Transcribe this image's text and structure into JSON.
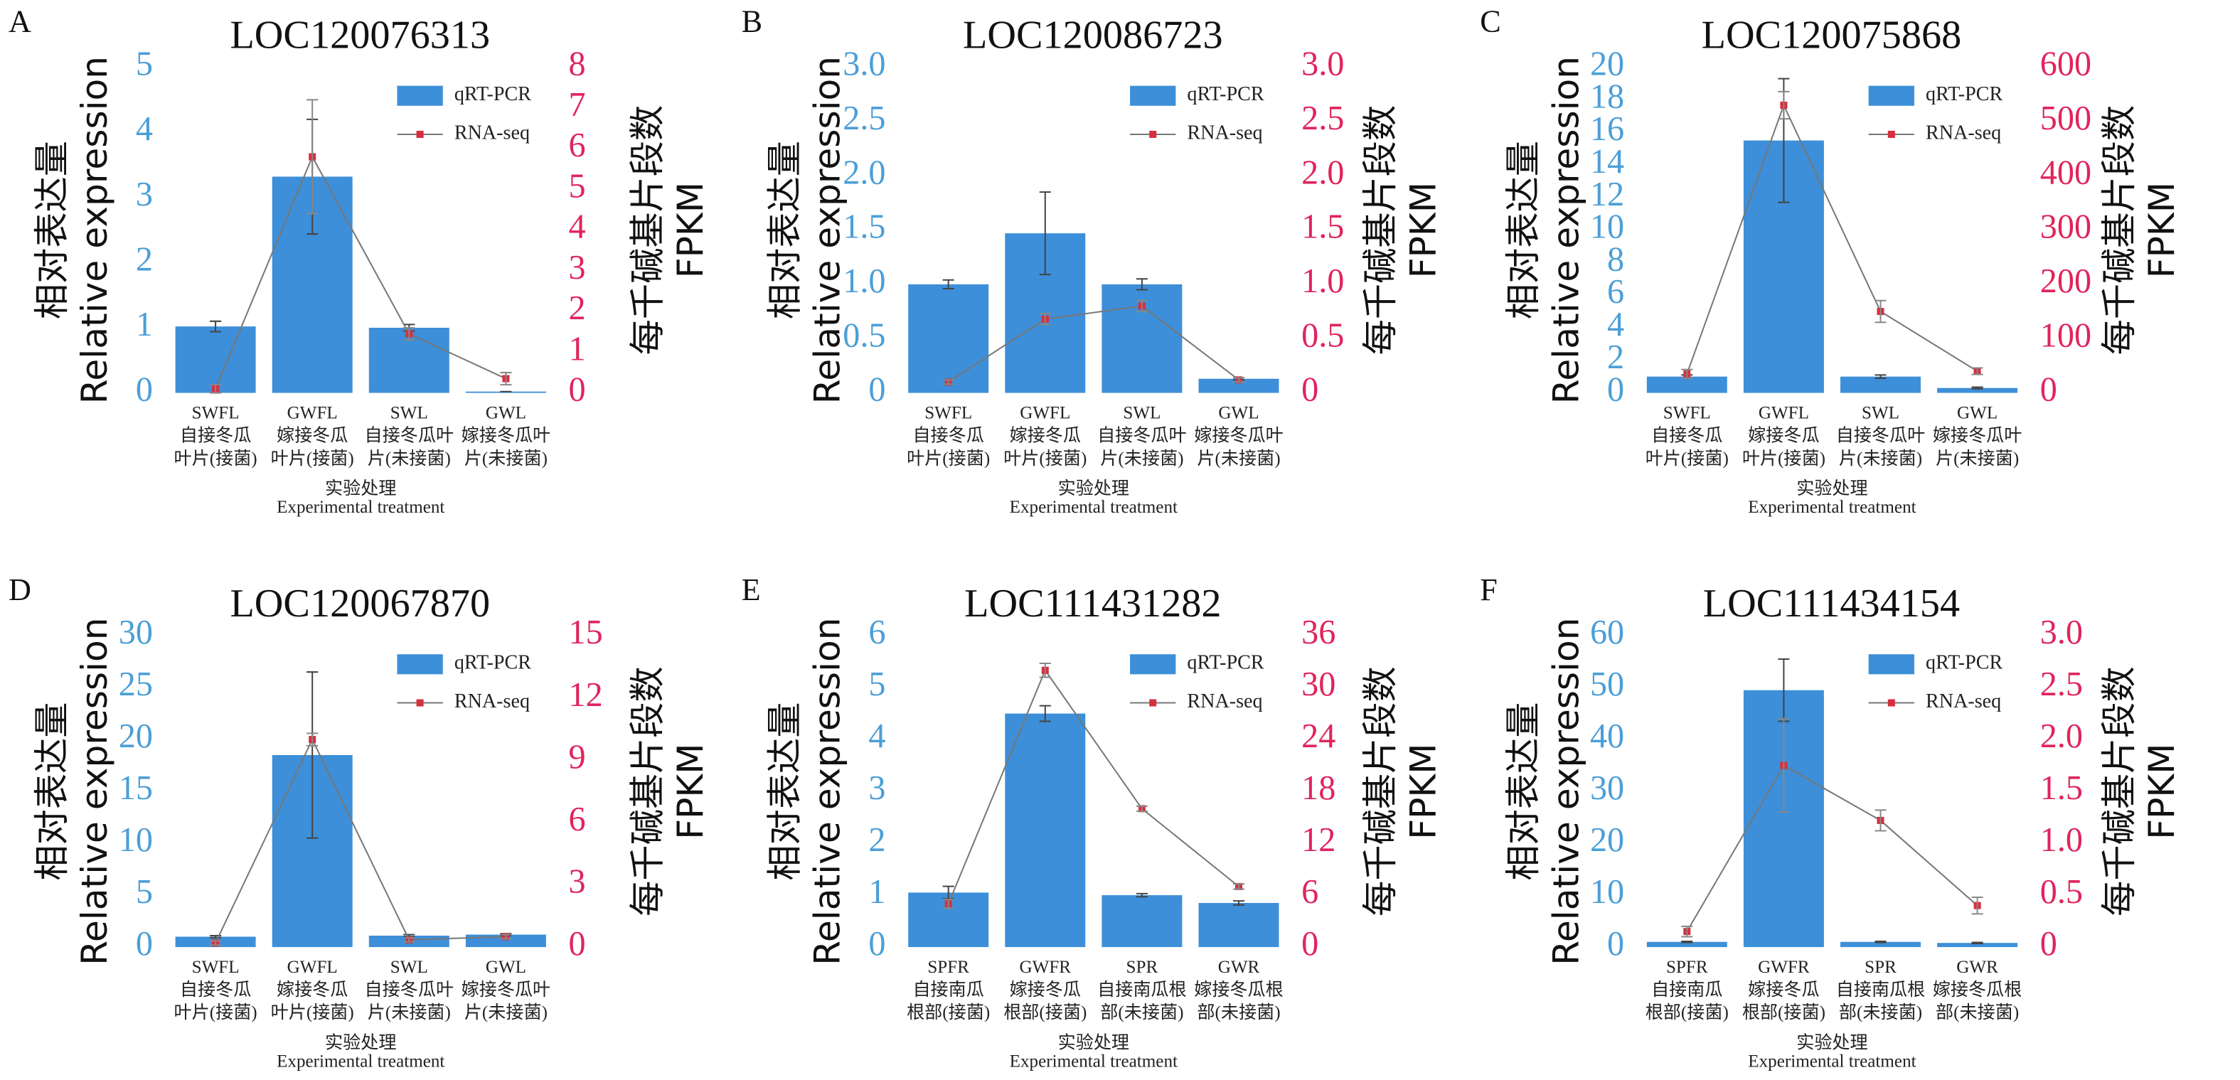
{
  "chart_data": [
    {
      "type": "bar",
      "panel": "A",
      "title": "LOC120076313",
      "y_label": [
        "相对表达量",
        "Relative expression"
      ],
      "y2_label": [
        "每千碱基片段数",
        "FPKM"
      ],
      "x_label": [
        "实验处理",
        "Experimental treatment"
      ],
      "categories": [
        [
          "SWFL",
          "自接冬瓜",
          "叶片(接菌)"
        ],
        [
          "GWFL",
          "嫁接冬瓜",
          "叶片(接菌)"
        ],
        [
          "SWL",
          "自接冬瓜叶",
          "片(未接菌)"
        ],
        [
          "GWL",
          "嫁接冬瓜叶",
          "片(未接菌)"
        ]
      ],
      "series": [
        {
          "name": "qRT-PCR",
          "color": "#3d8fd9",
          "values": [
            1.02,
            3.32,
            1.0,
            0.02
          ],
          "errors": [
            0.08,
            0.88,
            0.05,
            0
          ]
        },
        {
          "name": "RNA-seq",
          "color": "#d6303f",
          "axis": "y2",
          "values": [
            0.1,
            5.8,
            1.45,
            0.35
          ],
          "errors": [
            0.1,
            1.4,
            0.15,
            0.15
          ]
        }
      ],
      "ylim": [
        0,
        5
      ],
      "yticks": [
        0,
        1,
        2,
        3,
        4,
        5
      ],
      "y2lim": [
        0,
        8
      ],
      "y2ticks": [
        0,
        1,
        2,
        3,
        4,
        5,
        6,
        7,
        8
      ],
      "legend": "upper right"
    },
    {
      "type": "bar",
      "panel": "B",
      "title": "LOC120086723",
      "y_label": [
        "相对表达量",
        "Relative expression"
      ],
      "y2_label": [
        "每千碱基片段数",
        "FPKM"
      ],
      "x_label": [
        "实验处理",
        "Experimental treatment"
      ],
      "categories": [
        [
          "SWFL",
          "自接冬瓜",
          "叶片(接菌)"
        ],
        [
          "GWFL",
          "嫁接冬瓜",
          "叶片(接菌)"
        ],
        [
          "SWL",
          "自接冬瓜叶",
          "片(未接菌)"
        ],
        [
          "GWL",
          "嫁接冬瓜叶",
          "片(未接菌)"
        ]
      ],
      "series": [
        {
          "name": "qRT-PCR",
          "color": "#3d8fd9",
          "values": [
            1.0,
            1.47,
            1.0,
            0.13
          ],
          "errors": [
            0.04,
            0.38,
            0.05,
            0.01
          ]
        },
        {
          "name": "RNA-seq",
          "color": "#d6303f",
          "axis": "y2",
          "values": [
            0.1,
            0.68,
            0.8,
            0.12
          ],
          "errors": [
            0.02,
            0.05,
            0.05,
            0.02
          ]
        }
      ],
      "ylim": [
        0,
        3
      ],
      "yticks": [
        0,
        0.5,
        {
          "value": 1,
          "label": "1.0"
        },
        1.5,
        {
          "value": 2,
          "label": "2.0"
        },
        2.5,
        {
          "value": 3,
          "label": "3.0"
        }
      ],
      "y2lim": [
        0,
        3
      ],
      "y2ticks": [
        0,
        0.5,
        {
          "value": 1,
          "label": "1.0"
        },
        1.5,
        {
          "value": 2,
          "label": "2.0"
        },
        2.5,
        {
          "value": 3,
          "label": "3.0"
        }
      ],
      "legend": "upper right"
    },
    {
      "type": "bar",
      "panel": "C",
      "title": "LOC120075868",
      "y_label": [
        "相对表达量",
        "Relative expression"
      ],
      "y2_label": [
        "每千碱基片段数",
        "FPKM"
      ],
      "x_label": [
        "实验处理",
        "Experimental treatment"
      ],
      "categories": [
        [
          "SWFL",
          "自接冬瓜",
          "叶片(接菌)"
        ],
        [
          "GWFL",
          "嫁接冬瓜",
          "叶片(接菌)"
        ],
        [
          "SWL",
          "自接冬瓜叶",
          "片(未接菌)"
        ],
        [
          "GWL",
          "嫁接冬瓜叶",
          "片(未接菌)"
        ]
      ],
      "series": [
        {
          "name": "qRT-PCR",
          "color": "#3d8fd9",
          "values": [
            1.0,
            15.5,
            1.0,
            0.3
          ],
          "errors": [
            0.1,
            3.8,
            0.1,
            0.05
          ]
        },
        {
          "name": "RNA-seq",
          "color": "#d6303f",
          "axis": "y2",
          "values": [
            35,
            530,
            150,
            40
          ],
          "errors": [
            8,
            25,
            20,
            6
          ]
        }
      ],
      "ylim": [
        0,
        20
      ],
      "yticks": [
        0,
        2,
        4,
        6,
        8,
        10,
        12,
        14,
        16,
        18,
        20
      ],
      "y2lim": [
        0,
        600
      ],
      "y2ticks": [
        0,
        100,
        200,
        300,
        400,
        500,
        600
      ],
      "legend": "upper right"
    },
    {
      "type": "bar",
      "panel": "D",
      "title": "LOC120067870",
      "y_label": [
        "相对表达量",
        "Relative expression"
      ],
      "y2_label": [
        "每千碱基片段数",
        "FPKM"
      ],
      "x_label": [
        "实验处理",
        "Experimental treatment"
      ],
      "categories": [
        [
          "SWFL",
          "自接冬瓜",
          "叶片(接菌)"
        ],
        [
          "GWFL",
          "嫁接冬瓜",
          "叶片(接菌)"
        ],
        [
          "SWL",
          "自接冬瓜叶",
          "片(未接菌)"
        ],
        [
          "GWL",
          "嫁接冬瓜叶",
          "片(未接菌)"
        ]
      ],
      "series": [
        {
          "name": "qRT-PCR",
          "color": "#3d8fd9",
          "values": [
            1.0,
            18.5,
            1.1,
            1.2
          ],
          "errors": [
            0.1,
            8,
            0.1,
            0.1
          ]
        },
        {
          "name": "RNA-seq",
          "color": "#d6303f",
          "axis": "y2",
          "values": [
            0.2,
            10,
            0.35,
            0.5
          ],
          "errors": [
            0.1,
            0.3,
            0.1,
            0.1
          ]
        }
      ],
      "ylim": [
        0,
        30
      ],
      "yticks": [
        0,
        5,
        10,
        15,
        20,
        25,
        30
      ],
      "y2lim": [
        0,
        15
      ],
      "y2ticks": [
        0,
        3,
        6,
        9,
        12,
        15
      ],
      "legend": "upper right"
    },
    {
      "type": "bar",
      "panel": "E",
      "title": "LOC111431282",
      "y_label": [
        "相对表达量",
        "Relative expression"
      ],
      "y2_label": [
        "每千碱基片段数",
        "FPKM"
      ],
      "x_label": [
        "实验处理",
        "Experimental treatment"
      ],
      "categories": [
        [
          "SPFR",
          "自接南瓜",
          "根部(接菌)"
        ],
        [
          "GWFR",
          "嫁接冬瓜",
          "根部(接菌)"
        ],
        [
          "SPR",
          "自接南瓜根",
          "部(未接菌)"
        ],
        [
          "GWR",
          "嫁接冬瓜根",
          "部(未接菌)"
        ]
      ],
      "series": [
        {
          "name": "qRT-PCR",
          "color": "#3d8fd9",
          "values": [
            1.05,
            4.5,
            1.0,
            0.85
          ],
          "errors": [
            0.12,
            0.15,
            0.03,
            0.04
          ]
        },
        {
          "name": "RNA-seq",
          "color": "#d6303f",
          "axis": "y2",
          "values": [
            5,
            32,
            16,
            7
          ],
          "errors": [
            0.5,
            0.8,
            0.3,
            0.3
          ]
        }
      ],
      "ylim": [
        0,
        6
      ],
      "yticks": [
        0,
        1,
        2,
        3,
        4,
        5,
        6
      ],
      "y2lim": [
        0,
        36
      ],
      "y2ticks": [
        0,
        6,
        12,
        18,
        24,
        30,
        36
      ],
      "legend": "upper right"
    },
    {
      "type": "bar",
      "panel": "F",
      "title": "LOC111434154",
      "y_label": [
        "相对表达量",
        "Relative expression"
      ],
      "y2_label": [
        "每千碱基片段数",
        "FPKM"
      ],
      "x_label": [
        "实验处理",
        "Experimental treatment"
      ],
      "categories": [
        [
          "SPFR",
          "自接南瓜",
          "根部(接菌)"
        ],
        [
          "GWFR",
          "嫁接冬瓜",
          "根部(接菌)"
        ],
        [
          "SPR",
          "自接南瓜根",
          "部(未接菌)"
        ],
        [
          "GWR",
          "嫁接冬瓜根",
          "部(未接菌)"
        ]
      ],
      "series": [
        {
          "name": "qRT-PCR",
          "color": "#3d8fd9",
          "values": [
            1.0,
            49.5,
            1.0,
            0.8
          ],
          "errors": [
            0.1,
            6,
            0.1,
            0.1
          ]
        },
        {
          "name": "RNA-seq",
          "color": "#d6303f",
          "axis": "y2",
          "values": [
            0.15,
            1.75,
            1.22,
            0.4
          ],
          "errors": [
            0.05,
            0.45,
            0.1,
            0.08
          ]
        }
      ],
      "ylim": [
        0,
        60
      ],
      "yticks": [
        0,
        10,
        20,
        30,
        40,
        50,
        60
      ],
      "y2lim": [
        0,
        3
      ],
      "y2ticks": [
        0,
        0.5,
        {
          "value": 1,
          "label": "1.0"
        },
        1.5,
        {
          "value": 2,
          "label": "2.0"
        },
        2.5,
        {
          "value": 3,
          "label": "3.0"
        }
      ],
      "legend": "upper right"
    }
  ]
}
